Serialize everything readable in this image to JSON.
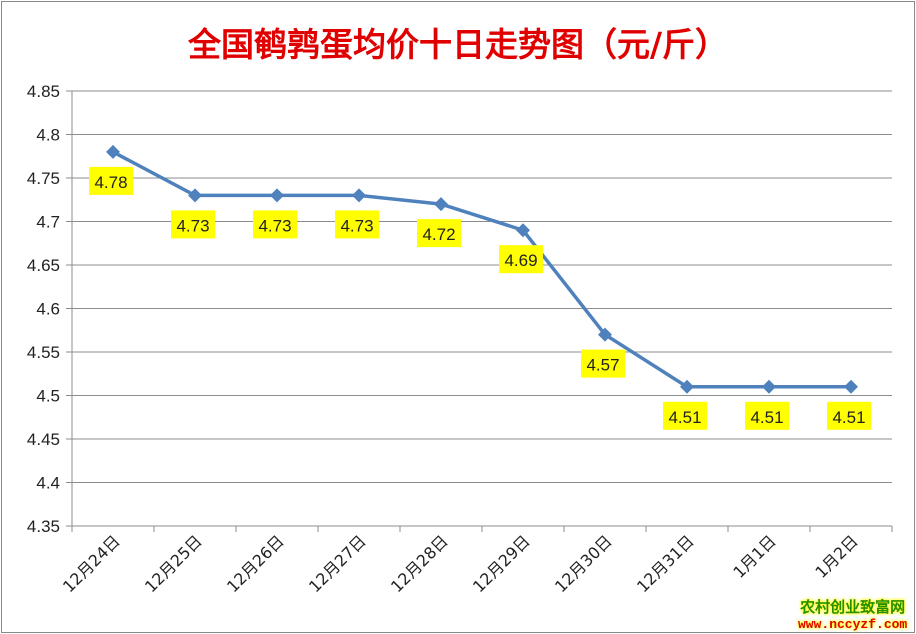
{
  "chart_data": {
    "type": "line",
    "title": "全国鹌鹑蛋均价十日走势图（元/斤）",
    "categories": [
      "12月24日",
      "12月25日",
      "12月26日",
      "12月27日",
      "12月28日",
      "12月29日",
      "12月30日",
      "12月31日",
      "1月1日",
      "1月2日"
    ],
    "values": [
      4.78,
      4.73,
      4.73,
      4.73,
      4.72,
      4.69,
      4.57,
      4.51,
      4.51,
      4.51
    ],
    "data_labels": [
      "4.78",
      "4.73",
      "4.73",
      "4.73",
      "4.72",
      "4.69",
      "4.57",
      "4.51",
      "4.51",
      "4.51"
    ],
    "yticks": [
      "4.35",
      "4.4",
      "4.45",
      "4.5",
      "4.55",
      "4.6",
      "4.65",
      "4.7",
      "4.75",
      "4.8",
      "4.85"
    ],
    "ylim": [
      4.35,
      4.85
    ],
    "grid": true,
    "line_color": "#4f81bd",
    "label_bg": "#ffff00",
    "marker": "diamond"
  },
  "watermark": {
    "name": "农村创业致富网",
    "url": "www.nccyzf.com"
  }
}
